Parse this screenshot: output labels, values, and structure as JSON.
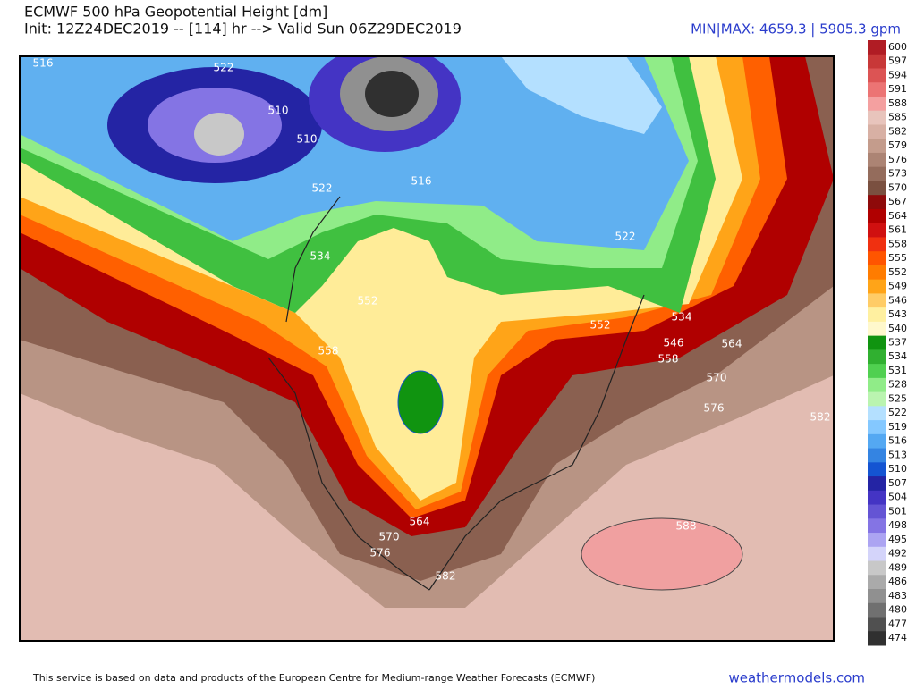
{
  "header": {
    "title": "ECMWF 500 hPa Geopotential Height [dm]",
    "init": "Init: 12Z24DEC2019 -- [114] hr --> Valid Sun 06Z29DEC2019",
    "minmax": "MIN|MAX: 4659.3 | 5905.3 gpm"
  },
  "colorbar": {
    "labels": [
      600,
      597,
      594,
      591,
      588,
      585,
      582,
      579,
      576,
      573,
      570,
      567,
      564,
      561,
      558,
      555,
      552,
      549,
      546,
      543,
      540,
      537,
      534,
      531,
      528,
      525,
      522,
      519,
      516,
      513,
      510,
      507,
      504,
      501,
      498,
      495,
      492,
      489,
      486,
      483,
      480,
      477,
      474
    ],
    "colors": [
      "#b01c24",
      "#c83838",
      "#dc5454",
      "#ec7474",
      "#f4a0a0",
      "#e8c4bc",
      "#d8b0a4",
      "#c49c8c",
      "#ac8474",
      "#946c5c",
      "#7a5040",
      "#8e0a0a",
      "#b00000",
      "#d01010",
      "#f03010",
      "#ff5500",
      "#ff7c00",
      "#ffa418",
      "#ffcc66",
      "#fff0a0",
      "#fff8cc",
      "#109410",
      "#30b030",
      "#50d050",
      "#90ec88",
      "#baf4b0",
      "#b4e0ff",
      "#84c8ff",
      "#54a8f2",
      "#3484e2",
      "#1454d2",
      "#2424a4",
      "#4434c4",
      "#6454d4",
      "#8474e4",
      "#aca4f2",
      "#d4d4fa",
      "#c8c8c8",
      "#aaaaaa",
      "#909090",
      "#707070",
      "#505050",
      "#303030"
    ]
  },
  "map": {
    "contour_labels": [
      516,
      522,
      510,
      510,
      522,
      516,
      534,
      552,
      558,
      564,
      570,
      576,
      582,
      588,
      582,
      576,
      570,
      564,
      558,
      546,
      534,
      552,
      522
    ]
  },
  "footer": {
    "notice": "This service is based on data and products of the European Centre for Medium-range Weather Forecasts (ECMWF)",
    "site": "weathermodels.com"
  }
}
